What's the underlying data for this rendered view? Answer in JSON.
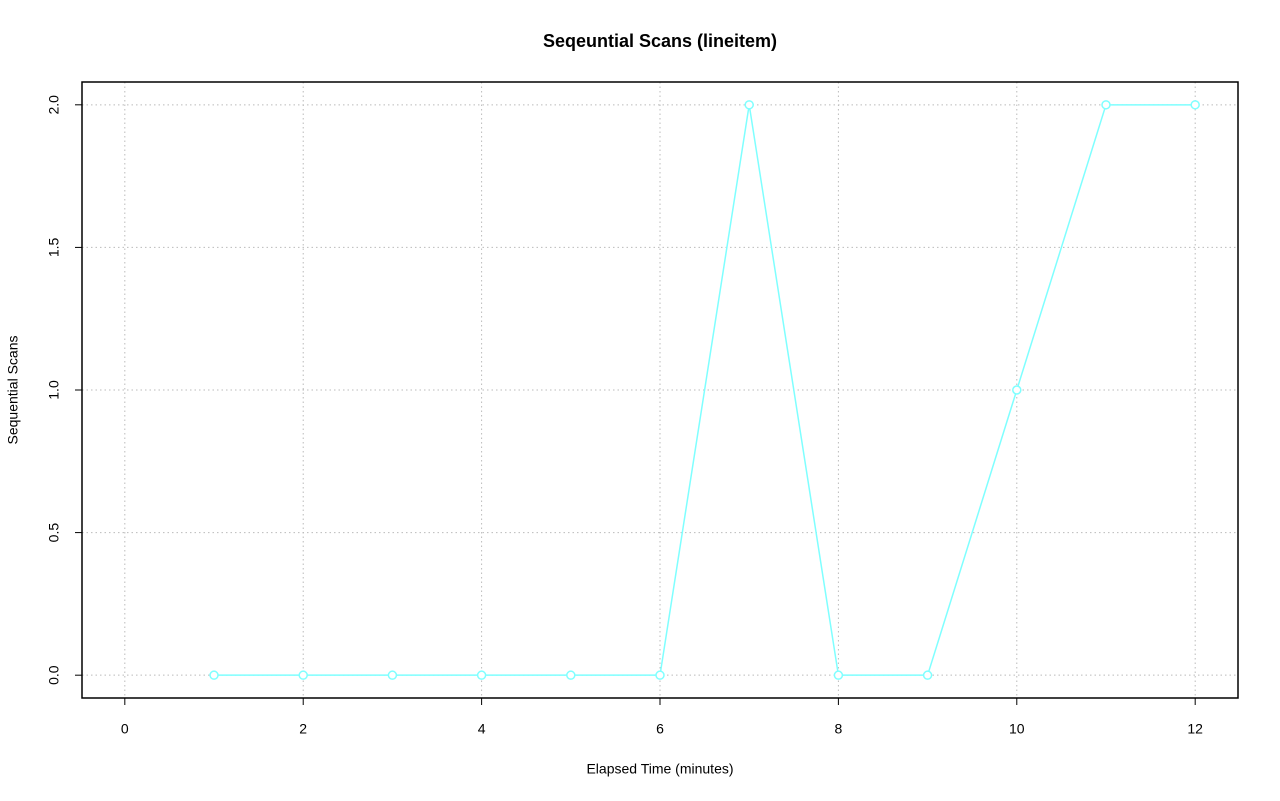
{
  "chart_data": {
    "type": "line",
    "title": "Seqeuntial Scans (lineitem)",
    "x_label": "Elapsed Time (minutes)",
    "y_label": "Sequential Scans",
    "x": [
      1,
      2,
      3,
      4,
      5,
      6,
      7,
      8,
      9,
      10,
      11,
      12
    ],
    "values": [
      0,
      0,
      0,
      0,
      0,
      0,
      2,
      0,
      0,
      1,
      2,
      2
    ],
    "color": "#7fffff",
    "xlim": [
      -0.48,
      12.48
    ],
    "xticks": [
      0,
      2,
      4,
      6,
      8,
      10,
      12
    ],
    "ylim": [
      -0.08,
      2.08
    ],
    "yticks": [
      {
        "value": 0,
        "label": "0.0"
      },
      {
        "value": 0.5,
        "label": "0.5"
      },
      {
        "value": 1,
        "label": "1.0"
      },
      {
        "value": 1.5,
        "label": "1.5"
      },
      {
        "value": 2,
        "label": "2.0"
      }
    ],
    "grid": true
  }
}
